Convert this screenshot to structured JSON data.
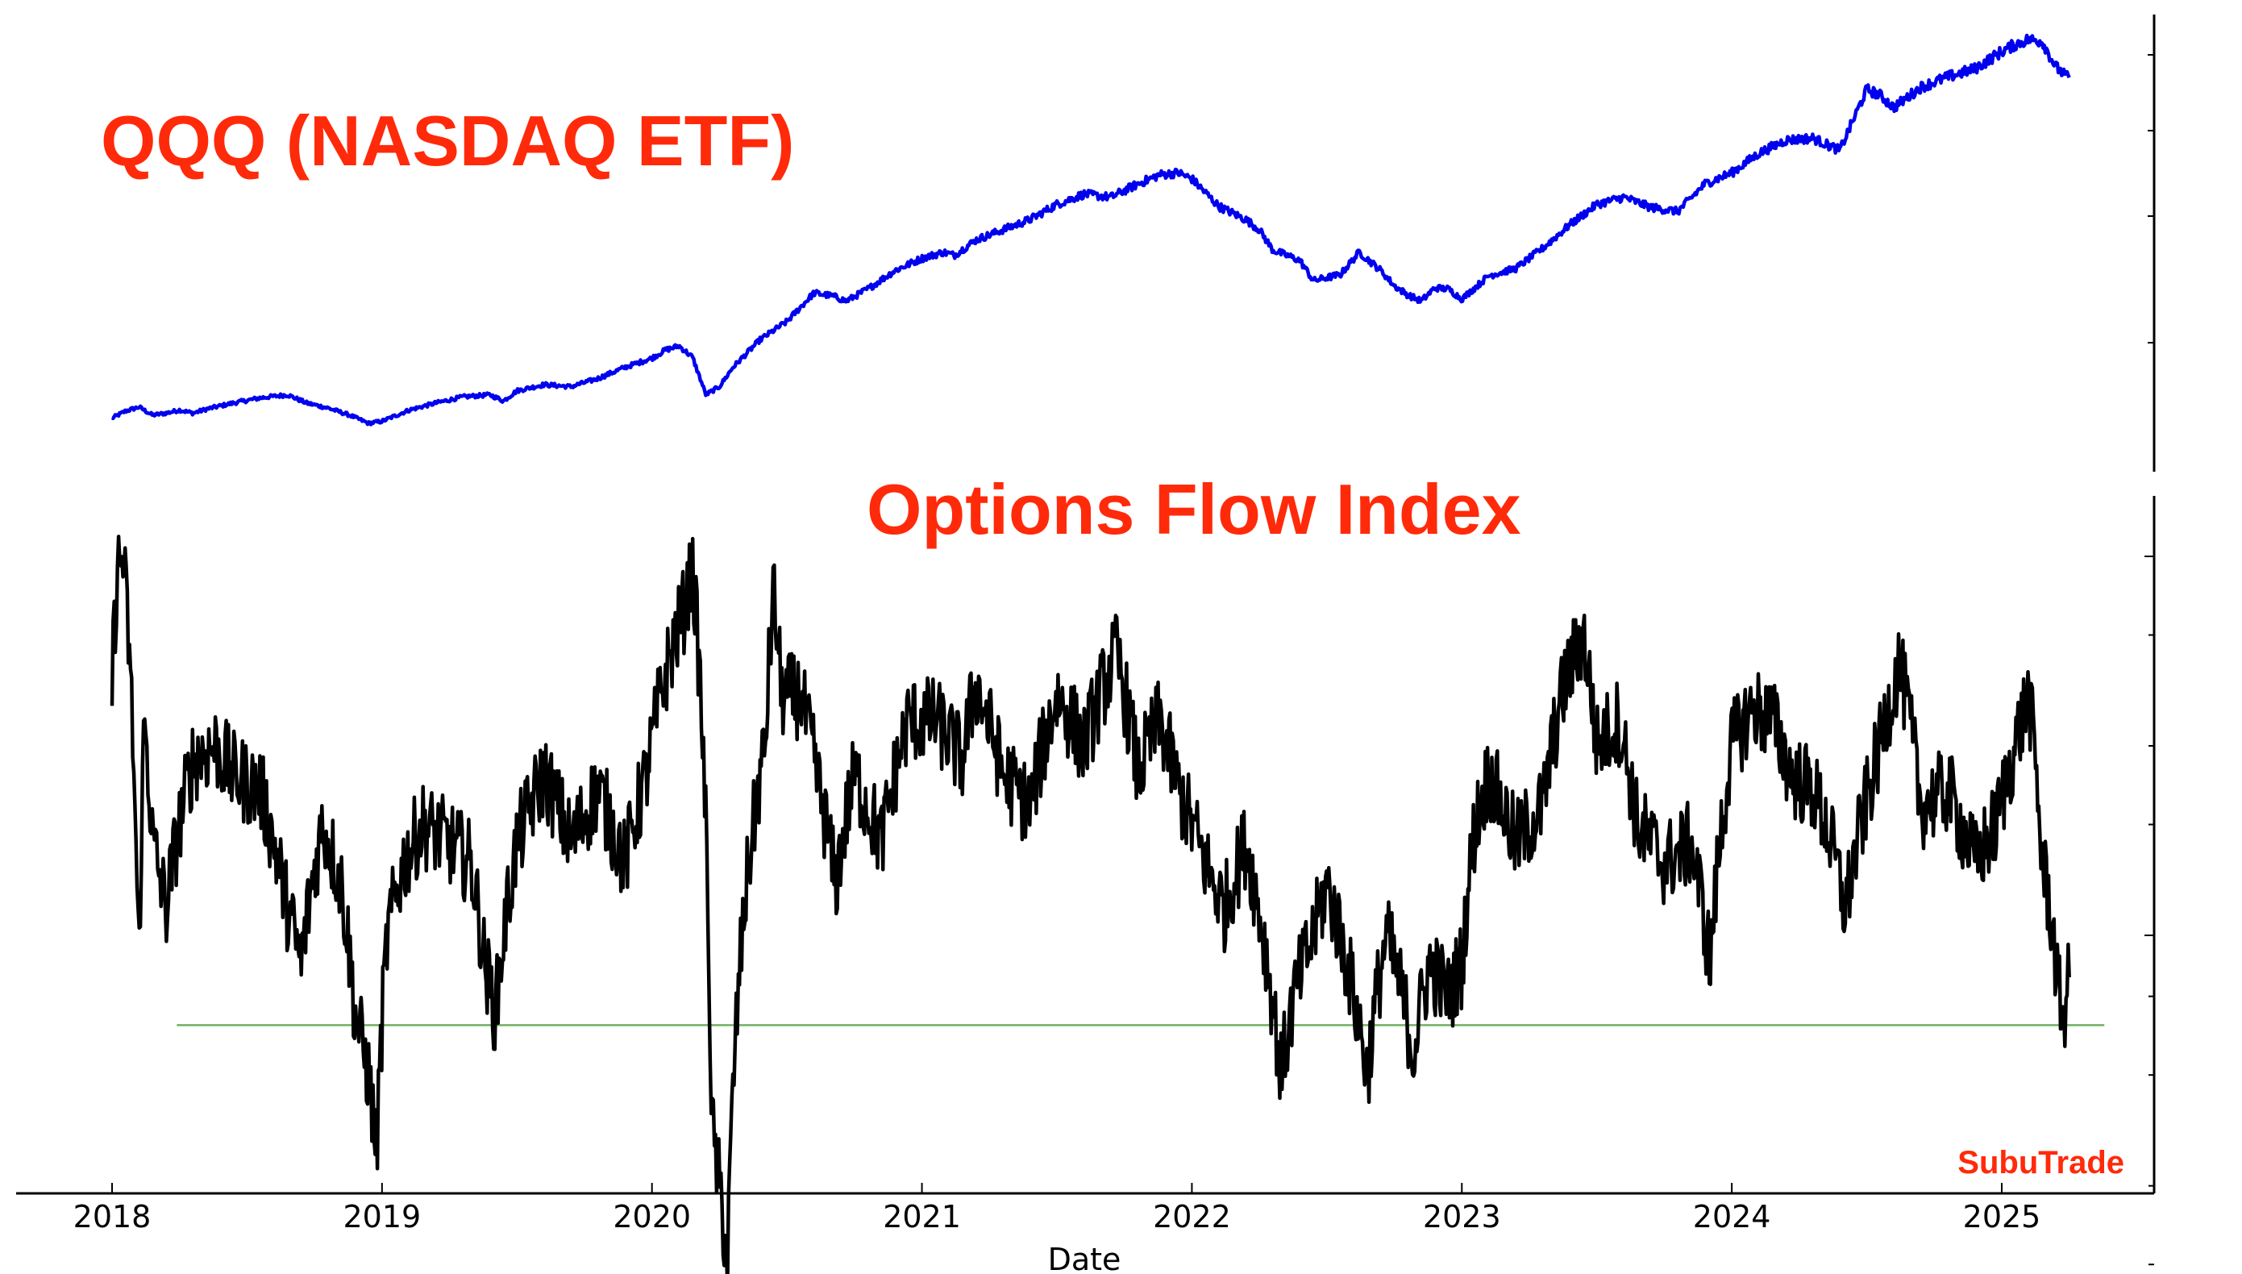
{
  "chart_data": [
    {
      "type": "line",
      "title": "QQQ (NASDAQ ETF)",
      "xlabel": "",
      "ylabel": "",
      "xlim": [
        2018.0,
        2025.25
      ],
      "grid": false,
      "series": [
        {
          "color": "#0000ee",
          "x": [
            2018.0,
            2018.05,
            2018.1,
            2018.15,
            2018.2,
            2018.25,
            2018.3,
            2018.35,
            2018.45,
            2018.55,
            2018.65,
            2018.72,
            2018.8,
            2018.88,
            2018.95,
            2019.0,
            2019.1,
            2019.2,
            2019.3,
            2019.4,
            2019.45,
            2019.5,
            2019.6,
            2019.7,
            2019.8,
            2019.9,
            2020.0,
            2020.05,
            2020.1,
            2020.15,
            2020.2,
            2020.25,
            2020.3,
            2020.4,
            2020.5,
            2020.6,
            2020.67,
            2020.72,
            2020.8,
            2020.9,
            2021.0,
            2021.08,
            2021.12,
            2021.2,
            2021.3,
            2021.4,
            2021.5,
            2021.6,
            2021.7,
            2021.8,
            2021.88,
            2021.95,
            2022.0,
            2022.1,
            2022.2,
            2022.25,
            2022.3,
            2022.4,
            2022.45,
            2022.55,
            2022.62,
            2022.7,
            2022.75,
            2022.8,
            2022.85,
            2022.9,
            2022.95,
            2023.0,
            2023.1,
            2023.2,
            2023.3,
            2023.4,
            2023.5,
            2023.6,
            2023.7,
            2023.8,
            2023.9,
            2024.0,
            2024.1,
            2024.2,
            2024.3,
            2024.4,
            2024.5,
            2024.55,
            2024.6,
            2024.7,
            2024.8,
            2024.9,
            2025.0,
            2025.05,
            2025.1,
            2025.15,
            2025.2,
            2025.25
          ],
          "y": [
            155,
            162,
            166,
            158,
            160,
            163,
            160,
            164,
            170,
            175,
            178,
            170,
            165,
            158,
            150,
            152,
            163,
            170,
            176,
            178,
            172,
            182,
            188,
            186,
            194,
            205,
            214,
            222,
            226,
            215,
            178,
            186,
            205,
            232,
            250,
            278,
            275,
            270,
            282,
            300,
            312,
            318,
            315,
            330,
            340,
            350,
            365,
            375,
            372,
            385,
            394,
            396,
            390,
            363,
            350,
            340,
            320,
            310,
            290,
            296,
            318,
            300,
            285,
            276,
            270,
            283,
            282,
            272,
            295,
            302,
            322,
            345,
            365,
            372,
            362,
            358,
            385,
            396,
            415,
            428,
            430,
            418,
            478,
            472,
            460,
            480,
            490,
            498,
            515,
            522,
            527,
            525,
            500,
            488
          ]
        }
      ]
    },
    {
      "type": "line",
      "title": "Options Flow Index",
      "xlabel": "Date",
      "ylabel": "",
      "xlim": [
        2018.0,
        2025.25
      ],
      "yscale": "log",
      "grid": false,
      "x_ticks": [
        "2018",
        "2019",
        "2020",
        "2021",
        "2022",
        "2023",
        "2024",
        "2025"
      ],
      "series": [
        {
          "color": "#000000",
          "x": [
            2018.0,
            2018.02,
            2018.04,
            2018.06,
            2018.09,
            2018.1,
            2018.12,
            2018.15,
            2018.2,
            2018.25,
            2018.3,
            2018.38,
            2018.45,
            2018.55,
            2018.65,
            2018.7,
            2018.78,
            2018.85,
            2018.9,
            2018.95,
            2018.98,
            2019.02,
            2019.08,
            2019.15,
            2019.25,
            2019.33,
            2019.38,
            2019.42,
            2019.5,
            2019.6,
            2019.7,
            2019.8,
            2019.9,
            2019.98,
            2020.05,
            2020.12,
            2020.15,
            2020.18,
            2020.22,
            2020.28,
            2020.35,
            2020.42,
            2020.45,
            2020.48,
            2020.55,
            2020.62,
            2020.68,
            2020.75,
            2020.85,
            2020.95,
            2021.05,
            2021.15,
            2021.2,
            2021.3,
            2021.4,
            2021.5,
            2021.6,
            2021.72,
            2021.8,
            2021.88,
            2021.95,
            2022.05,
            2022.12,
            2022.2,
            2022.28,
            2022.33,
            2022.38,
            2022.45,
            2022.5,
            2022.6,
            2022.65,
            2022.72,
            2022.78,
            2022.82,
            2022.88,
            2022.95,
            2023.0,
            2023.05,
            2023.1,
            2023.2,
            2023.3,
            2023.38,
            2023.45,
            2023.5,
            2023.58,
            2023.65,
            2023.75,
            2023.85,
            2023.92,
            2024.0,
            2024.08,
            2024.15,
            2024.22,
            2024.3,
            2024.35,
            2024.42,
            2024.48,
            2024.55,
            2024.62,
            2024.7,
            2024.8,
            2024.9,
            2024.98,
            2025.05,
            2025.1,
            2025.15,
            2025.18,
            2025.21,
            2025.23,
            2025.25
          ],
          "y": [
            25,
            38,
            40,
            30,
            13,
            8.8,
            22,
            14,
            11,
            15,
            19,
            20,
            18,
            17,
            11,
            9,
            15,
            12,
            7.5,
            6,
            4.5,
            10,
            13,
            15,
            14,
            13,
            9,
            7.5,
            14,
            18,
            14,
            17,
            13,
            18,
            26,
            33,
            38,
            24,
            5,
            3,
            12,
            20,
            35,
            24,
            24,
            17,
            12,
            18,
            14,
            22,
            22,
            19,
            25,
            18,
            16,
            24,
            20,
            28,
            18,
            22,
            17,
            13,
            11,
            14,
            9,
            6,
            8,
            10,
            12,
            8,
            6,
            10,
            8,
            6.5,
            9,
            8,
            9,
            15,
            18,
            14,
            16,
            25,
            30,
            20,
            22,
            15,
            13,
            14,
            9,
            20,
            23,
            22,
            18,
            17,
            15,
            11,
            15,
            20,
            27,
            16,
            17,
            13,
            15,
            20,
            24,
            13,
            11,
            8,
            7.5,
            8.5
          ]
        }
      ],
      "reference_line": {
        "y": 7.2,
        "x_start": 2018.24,
        "x_end": 2025.38,
        "color": "#70b060"
      }
    }
  ],
  "brand": "SubuTrade"
}
